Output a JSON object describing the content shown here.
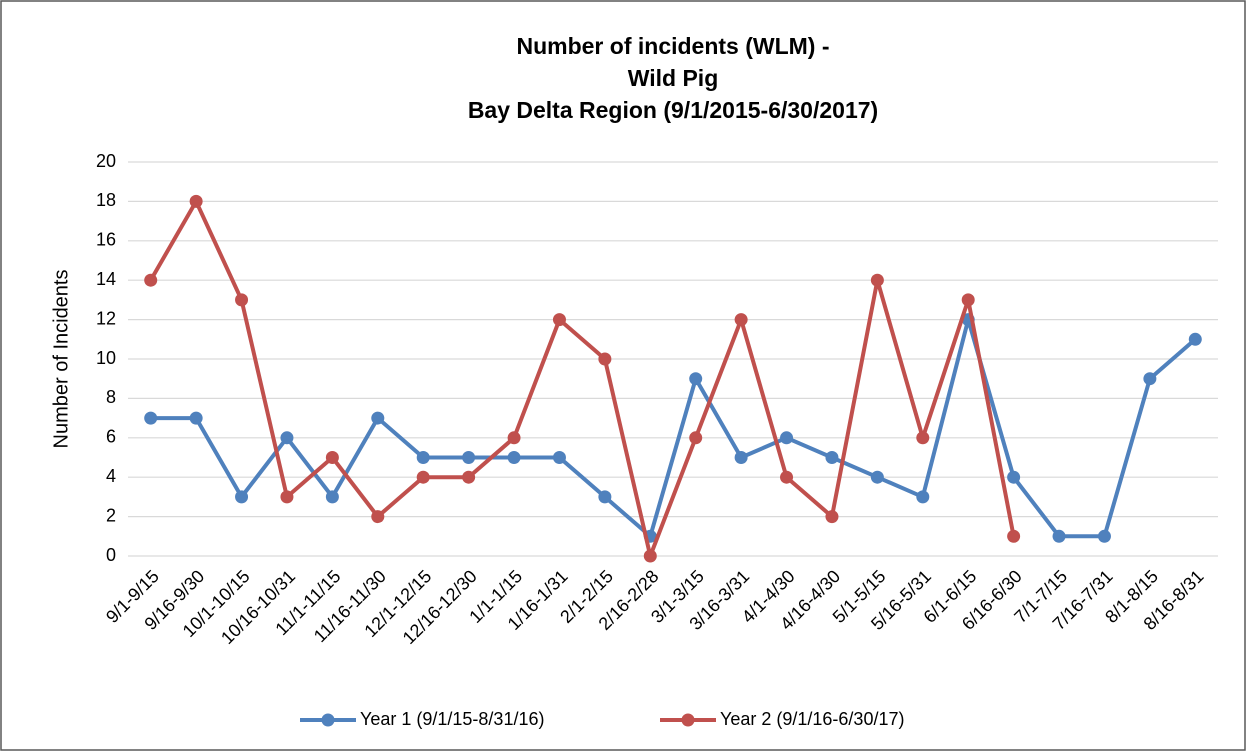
{
  "chart_data": {
    "type": "line",
    "title": [
      "Number of incidents (WLM) -",
      "Wild Pig",
      "Bay Delta Region (9/1/2015-6/30/2017)"
    ],
    "y_label": "Number of Incidents",
    "categories": [
      "9/1-9/15",
      "9/16-9/30",
      "10/1-10/15",
      "10/16-10/31",
      "11/1-11/15",
      "11/16-11/30",
      "12/1-12/15",
      "12/16-12/30",
      "1/1-1/15",
      "1/16-1/31",
      "2/1-2/15",
      "2/16-2/28",
      "3/1-3/15",
      "3/16-3/31",
      "4/1-4/30",
      "4/16-4/30",
      "5/1-5/15",
      "5/16-5/31",
      "6/1-6/15",
      "6/16-6/30",
      "7/1-7/15",
      "7/16-7/31",
      "8/1-8/15",
      "8/16-8/31"
    ],
    "series": [
      {
        "name": "Year 1 (9/1/15-8/31/16)",
        "color": "#4f81bd",
        "values": [
          7,
          7,
          3,
          6,
          3,
          7,
          5,
          5,
          5,
          5,
          3,
          1,
          9,
          5,
          6,
          5,
          4,
          3,
          12,
          4,
          1,
          1,
          9,
          11
        ]
      },
      {
        "name": "Year 2 (9/1/16-6/30/17)",
        "color": "#c0504d",
        "values": [
          14,
          18,
          13,
          3,
          5,
          2,
          4,
          4,
          6,
          12,
          10,
          0,
          6,
          12,
          4,
          2,
          14,
          6,
          13,
          1,
          null,
          null,
          null,
          null
        ]
      }
    ],
    "ylim": [
      0,
      20
    ],
    "yticks": [
      0,
      2,
      4,
      6,
      8,
      10,
      12,
      14,
      16,
      18,
      20
    ],
    "grid": true,
    "legend": "bottom"
  }
}
